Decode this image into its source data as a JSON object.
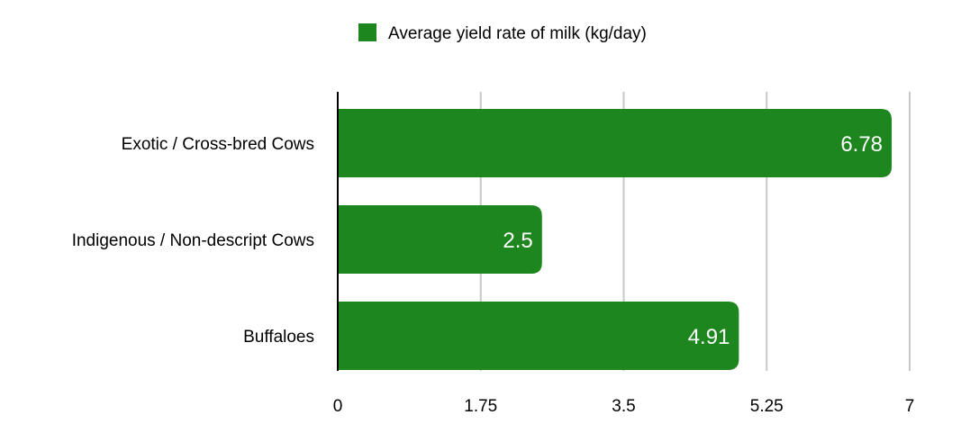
{
  "colors": {
    "bar": "#1e861e",
    "gridline": "#c8c8c8",
    "axis": "#000000",
    "text": "#000000",
    "data_label": "#ffffff",
    "background": "#ffffff"
  },
  "chart_data": {
    "type": "bar",
    "orientation": "horizontal",
    "categories": [
      "Exotic / Cross-bred Cows",
      "Indigenous / Non-descript Cows",
      "Buffaloes"
    ],
    "series": [
      {
        "name": "Average yield rate of milk (kg/day)",
        "values": [
          6.78,
          2.5,
          4.91
        ],
        "color": "#1e861e"
      }
    ],
    "data_labels": [
      "6.78",
      "2.5",
      "4.91"
    ],
    "xlim": [
      0,
      7
    ],
    "x_ticks": [
      0,
      1.75,
      3.5,
      5.25,
      7
    ],
    "x_tick_labels": [
      "0",
      "1.75",
      "3.5",
      "5.25",
      "7"
    ],
    "title": "",
    "xlabel": "",
    "ylabel": "",
    "grid": true,
    "legend_position": "top-center"
  }
}
